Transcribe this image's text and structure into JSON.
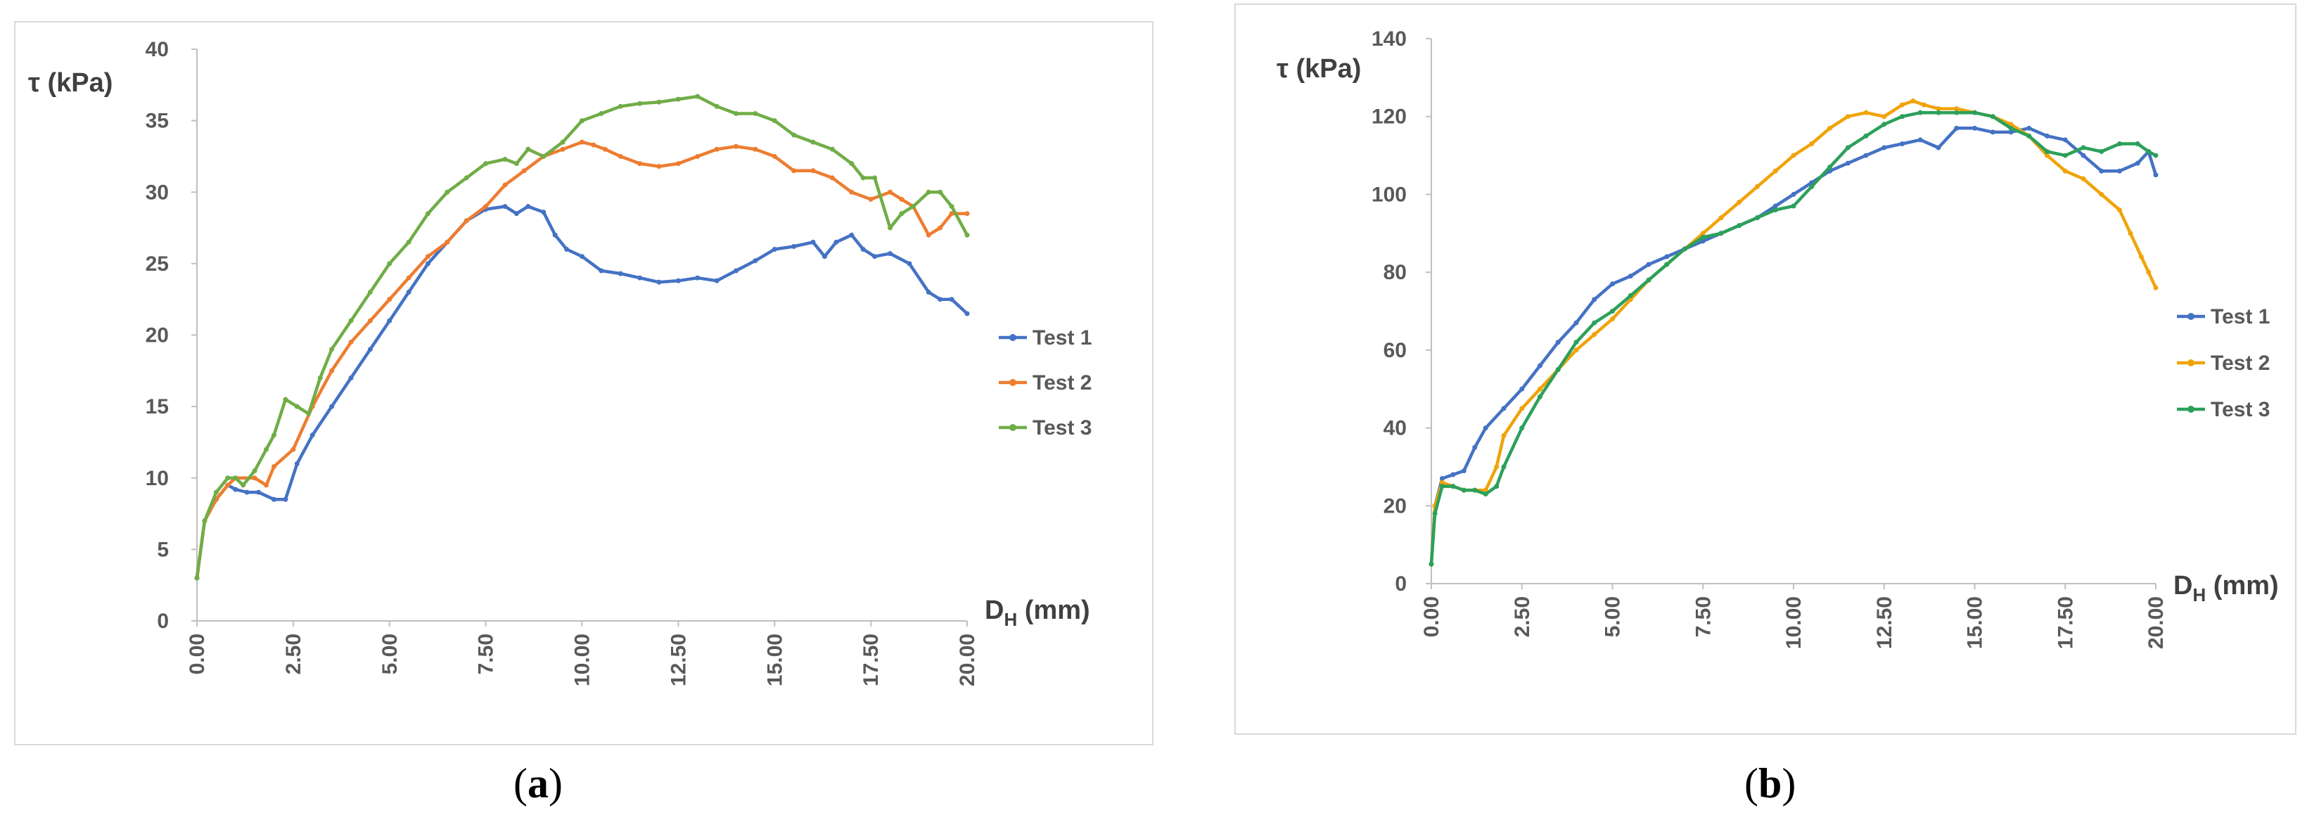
{
  "chart_data": [
    {
      "type": "line",
      "panel_label": "a",
      "ylabel": "τ (kPa)",
      "xlabel": "D",
      "xlabel_sub": "H",
      "xlabel_unit": " (mm)",
      "xlim": [
        0,
        20
      ],
      "ylim": [
        0,
        40
      ],
      "xticks": [
        "0.00",
        "2.50",
        "5.00",
        "7.50",
        "10.00",
        "12.50",
        "15.00",
        "17.50",
        "20.00"
      ],
      "yticks": [
        "0",
        "5",
        "10",
        "15",
        "20",
        "25",
        "30",
        "35",
        "40"
      ],
      "grid": false,
      "legend": "right",
      "series": [
        {
          "name": "Test 1",
          "color": "#4472c4",
          "x": [
            0,
            0.2,
            0.5,
            0.8,
            1.0,
            1.3,
            1.6,
            2.0,
            2.3,
            2.6,
            3.0,
            3.5,
            4.0,
            4.5,
            5.0,
            5.5,
            6.0,
            6.5,
            7.0,
            7.5,
            8.0,
            8.3,
            8.6,
            9.0,
            9.3,
            9.6,
            10.0,
            10.5,
            11.0,
            11.5,
            12.0,
            12.5,
            13.0,
            13.5,
            14.0,
            14.5,
            15.0,
            15.5,
            16.0,
            16.3,
            16.6,
            17.0,
            17.3,
            17.6,
            18.0,
            18.5,
            19.0,
            19.3,
            19.6,
            20.0
          ],
          "y": [
            3,
            7,
            8.5,
            9.5,
            9.2,
            9,
            9,
            8.5,
            8.5,
            11,
            13,
            15,
            17,
            19,
            21,
            23,
            25,
            26.5,
            28,
            28.8,
            29,
            28.5,
            29,
            28.6,
            27,
            26,
            25.5,
            24.5,
            24.3,
            24,
            23.7,
            23.8,
            24,
            23.8,
            24.5,
            25.2,
            26,
            26.2,
            26.5,
            25.5,
            26.5,
            27,
            26,
            25.5,
            25.7,
            25,
            23,
            22.5,
            22.5,
            21.5
          ]
        },
        {
          "name": "Test 2",
          "color": "#ed7d31",
          "x": [
            0,
            0.2,
            0.5,
            0.8,
            1.0,
            1.5,
            1.8,
            2.0,
            2.5,
            3.0,
            3.5,
            4.0,
            4.5,
            5.0,
            5.5,
            6.0,
            6.5,
            7.0,
            7.5,
            8.0,
            8.5,
            9.0,
            9.5,
            10.0,
            10.3,
            10.6,
            11.0,
            11.5,
            12.0,
            12.5,
            13.0,
            13.5,
            14.0,
            14.5,
            15.0,
            15.5,
            16.0,
            16.5,
            17.0,
            17.5,
            18.0,
            18.3,
            18.6,
            19.0,
            19.3,
            19.6,
            20.0
          ],
          "y": [
            3,
            7,
            8.5,
            9.5,
            10,
            10,
            9.5,
            10.8,
            12,
            15,
            17.5,
            19.5,
            21,
            22.5,
            24,
            25.5,
            26.5,
            28,
            29,
            30.5,
            31.5,
            32.5,
            33,
            33.5,
            33.3,
            33,
            32.5,
            32,
            31.8,
            32,
            32.5,
            33,
            33.2,
            33,
            32.5,
            31.5,
            31.5,
            31,
            30,
            29.5,
            30,
            29.5,
            29,
            27,
            27.5,
            28.5,
            28.5
          ]
        },
        {
          "name": "Test 3",
          "color": "#70ad47",
          "x": [
            0,
            0.2,
            0.5,
            0.8,
            1.0,
            1.2,
            1.5,
            1.8,
            2.0,
            2.3,
            2.6,
            2.9,
            3.2,
            3.5,
            4.0,
            4.5,
            5.0,
            5.5,
            6.0,
            6.5,
            7.0,
            7.5,
            8.0,
            8.3,
            8.6,
            9.0,
            9.5,
            10.0,
            10.5,
            11.0,
            11.5,
            12.0,
            12.5,
            13.0,
            13.5,
            14.0,
            14.5,
            15.0,
            15.5,
            16.0,
            16.5,
            17.0,
            17.3,
            17.6,
            18.0,
            18.3,
            18.6,
            19.0,
            19.3,
            19.6,
            20.0
          ],
          "y": [
            3,
            7,
            9,
            10,
            10,
            9.5,
            10.5,
            12,
            13,
            15.5,
            15,
            14.5,
            17,
            19,
            21,
            23,
            25,
            26.5,
            28.5,
            30,
            31,
            32,
            32.3,
            32,
            33,
            32.5,
            33.5,
            35,
            35.5,
            36,
            36.2,
            36.3,
            36.5,
            36.7,
            36,
            35.5,
            35.5,
            35,
            34,
            33.5,
            33,
            32,
            31,
            31,
            27.5,
            28.5,
            29,
            30,
            30,
            29,
            27
          ]
        }
      ]
    },
    {
      "type": "line",
      "panel_label": "b",
      "ylabel": "τ (kPa)",
      "xlabel": "D",
      "xlabel_sub": "H",
      "xlabel_unit": " (mm)",
      "xlim": [
        0,
        20
      ],
      "ylim": [
        0,
        140
      ],
      "xticks": [
        "0.00",
        "2.50",
        "5.00",
        "7.50",
        "10.00",
        "12.50",
        "15.00",
        "17.50",
        "20.00"
      ],
      "yticks": [
        "0",
        "20",
        "40",
        "60",
        "80",
        "100",
        "120",
        "140"
      ],
      "grid": false,
      "legend": "right",
      "series": [
        {
          "name": "Test 1",
          "color": "#4472c4",
          "x": [
            0,
            0.1,
            0.3,
            0.6,
            0.9,
            1.2,
            1.5,
            2.0,
            2.5,
            3.0,
            3.5,
            4.0,
            4.5,
            5.0,
            5.5,
            6.0,
            6.5,
            7.0,
            7.5,
            8.0,
            8.5,
            9.0,
            9.5,
            10.0,
            10.5,
            11.0,
            11.5,
            12.0,
            12.5,
            13.0,
            13.5,
            14.0,
            14.5,
            15.0,
            15.5,
            16.0,
            16.5,
            17.0,
            17.5,
            18.0,
            18.5,
            19.0,
            19.5,
            19.8,
            20.0
          ],
          "y": [
            5,
            20,
            27,
            28,
            29,
            35,
            40,
            45,
            50,
            56,
            62,
            67,
            73,
            77,
            79,
            82,
            84,
            86,
            88,
            90,
            92,
            94,
            97,
            100,
            103,
            106,
            108,
            110,
            112,
            113,
            114,
            112,
            117,
            117,
            116,
            116,
            117,
            115,
            114,
            110,
            106,
            106,
            108,
            111,
            105
          ]
        },
        {
          "name": "Test 2",
          "color": "#f0a30a",
          "x": [
            0,
            0.1,
            0.3,
            0.6,
            0.9,
            1.2,
            1.5,
            1.8,
            2.0,
            2.5,
            3.0,
            3.5,
            4.0,
            4.5,
            5.0,
            5.5,
            6.0,
            6.5,
            7.0,
            7.5,
            8.0,
            8.5,
            9.0,
            9.5,
            10.0,
            10.5,
            11.0,
            11.5,
            12.0,
            12.5,
            13.0,
            13.3,
            13.6,
            14.0,
            14.5,
            15.0,
            15.5,
            16.0,
            16.5,
            17.0,
            17.5,
            18.0,
            18.5,
            19.0,
            19.3,
            19.6,
            19.8,
            20.0
          ],
          "y": [
            5,
            20,
            26,
            25,
            24,
            24,
            24,
            30,
            38,
            45,
            50,
            55,
            60,
            64,
            68,
            73,
            78,
            82,
            86,
            90,
            94,
            98,
            102,
            106,
            110,
            113,
            117,
            120,
            121,
            120,
            123,
            124,
            123,
            122,
            122,
            121,
            120,
            118,
            115,
            110,
            106,
            104,
            100,
            96,
            90,
            84,
            80,
            76
          ]
        },
        {
          "name": "Test 3",
          "color": "#2ca05a",
          "x": [
            0,
            0.1,
            0.3,
            0.6,
            0.9,
            1.2,
            1.5,
            1.8,
            2.0,
            2.5,
            3.0,
            3.5,
            4.0,
            4.5,
            5.0,
            5.5,
            6.0,
            6.5,
            7.0,
            7.5,
            8.0,
            8.5,
            9.0,
            9.5,
            10.0,
            10.5,
            11.0,
            11.5,
            12.0,
            12.5,
            13.0,
            13.5,
            14.0,
            14.5,
            15.0,
            15.5,
            16.0,
            16.5,
            17.0,
            17.5,
            18.0,
            18.5,
            19.0,
            19.5,
            19.8,
            20.0
          ],
          "y": [
            5,
            18,
            25,
            25,
            24,
            24,
            23,
            25,
            30,
            40,
            48,
            55,
            62,
            67,
            70,
            74,
            78,
            82,
            86,
            89,
            90,
            92,
            94,
            96,
            97,
            102,
            107,
            112,
            115,
            118,
            120,
            121,
            121,
            121,
            121,
            120,
            117,
            115,
            111,
            110,
            112,
            111,
            113,
            113,
            111,
            110
          ]
        }
      ]
    }
  ],
  "captions": {
    "a": "a",
    "b": "b"
  }
}
